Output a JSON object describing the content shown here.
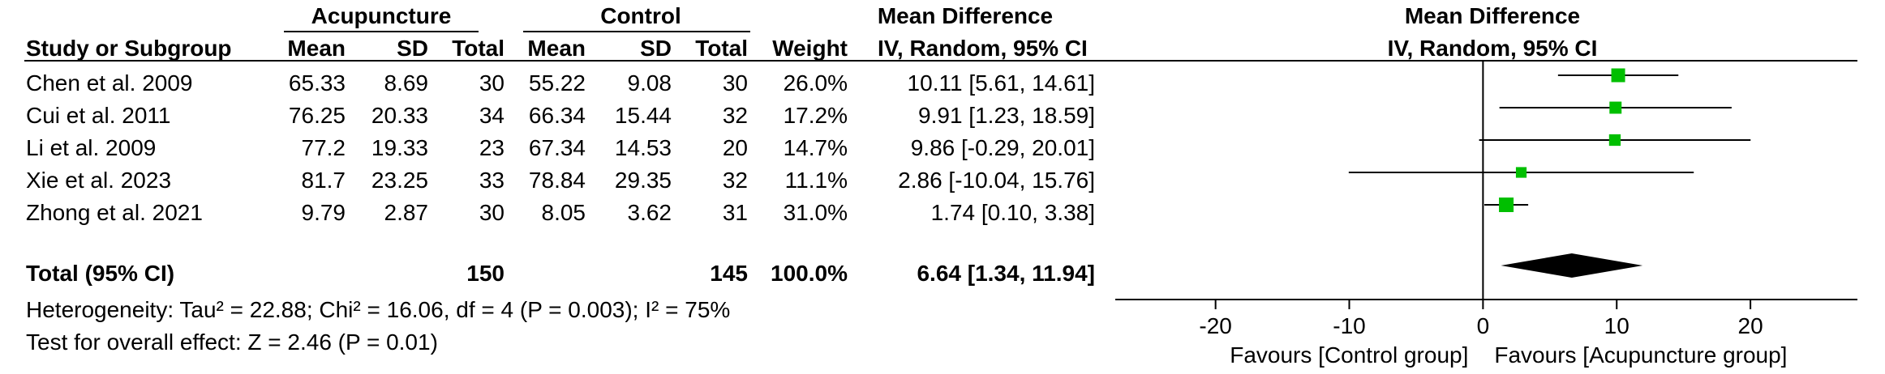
{
  "header": {
    "group1": "Acupuncture",
    "group2": "Control",
    "effect_title": "Mean Difference",
    "plot_title": "Mean Difference",
    "col_study": "Study or Subgroup",
    "col_mean1": "Mean",
    "col_sd1": "SD",
    "col_total1": "Total",
    "col_mean2": "Mean",
    "col_sd2": "SD",
    "col_total2": "Total",
    "col_weight": "Weight",
    "col_ci": "IV, Random, 95% CI",
    "plot_method": "IV, Random, 95% CI"
  },
  "studies": [
    {
      "name": "Chen et al. 2009",
      "mean1": "65.33",
      "sd1": "8.69",
      "n1": "30",
      "mean2": "55.22",
      "sd2": "9.08",
      "n2": "30",
      "weight": "26.0%",
      "ci_text": "10.11 [5.61, 14.61]"
    },
    {
      "name": "Cui et al. 2011",
      "mean1": "76.25",
      "sd1": "20.33",
      "n1": "34",
      "mean2": "66.34",
      "sd2": "15.44",
      "n2": "32",
      "weight": "17.2%",
      "ci_text": "9.91 [1.23, 18.59]"
    },
    {
      "name": "Li et al. 2009",
      "mean1": "77.2",
      "sd1": "19.33",
      "n1": "23",
      "mean2": "67.34",
      "sd2": "14.53",
      "n2": "20",
      "weight": "14.7%",
      "ci_text": "9.86 [-0.29, 20.01]"
    },
    {
      "name": "Xie et al. 2023",
      "mean1": "81.7",
      "sd1": "23.25",
      "n1": "33",
      "mean2": "78.84",
      "sd2": "29.35",
      "n2": "32",
      "weight": "11.1%",
      "ci_text": "2.86 [-10.04, 15.76]"
    },
    {
      "name": "Zhong et al. 2021",
      "mean1": "9.79",
      "sd1": "2.87",
      "n1": "30",
      "mean2": "8.05",
      "sd2": "3.62",
      "n2": "31",
      "weight": "31.0%",
      "ci_text": "1.74 [0.10, 3.38]"
    }
  ],
  "total": {
    "label": "Total (95% CI)",
    "n1": "150",
    "n2": "145",
    "weight": "100.0%",
    "ci_text": "6.64 [1.34, 11.94]"
  },
  "heterogeneity": "Heterogeneity: Tau² = 22.88; Chi² = 16.06, df = 4 (P = 0.003); I² = 75%",
  "overall_effect": "Test for overall effect: Z = 2.46 (P = 0.01)",
  "chart_data": {
    "type": "forest",
    "xlim": [
      -27.5,
      28
    ],
    "ticks": [
      -20,
      -10,
      0,
      10,
      20
    ],
    "tick_labels": [
      "-20",
      "-10",
      "0",
      "10",
      "20"
    ],
    "favours_left": "Favours [Control group]",
    "favours_right": "Favours [Acupuncture group]",
    "point_color": "#00bf00",
    "diamond_color": "#000000",
    "points": [
      {
        "estimate": 10.11,
        "lower": 5.61,
        "upper": 14.61,
        "weight": 26.0
      },
      {
        "estimate": 9.91,
        "lower": 1.23,
        "upper": 18.59,
        "weight": 17.2
      },
      {
        "estimate": 9.86,
        "lower": -0.29,
        "upper": 20.01,
        "weight": 14.7
      },
      {
        "estimate": 2.86,
        "lower": -10.04,
        "upper": 15.76,
        "weight": 11.1
      },
      {
        "estimate": 1.74,
        "lower": 0.1,
        "upper": 3.38,
        "weight": 31.0
      }
    ],
    "pooled": {
      "estimate": 6.64,
      "lower": 1.34,
      "upper": 11.94
    }
  }
}
